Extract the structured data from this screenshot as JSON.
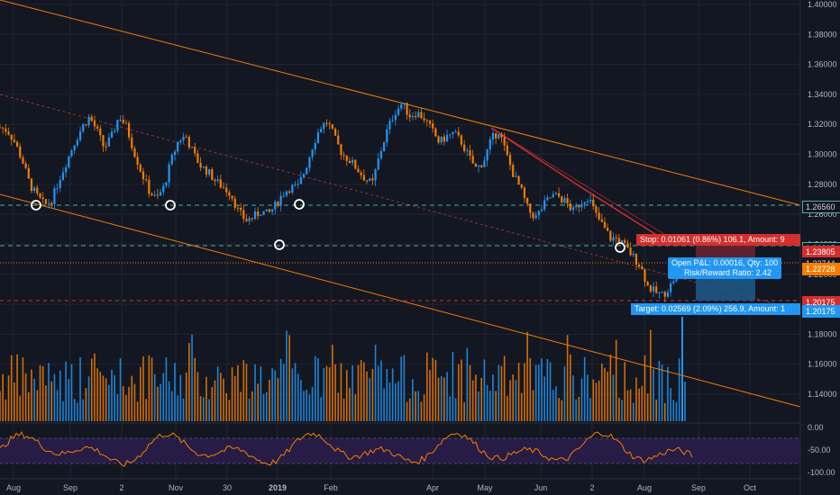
{
  "price_axis": {
    "ticks": [
      "1.40000",
      "1.38000",
      "1.36000",
      "1.34000",
      "1.32000",
      "1.30000",
      "1.28000",
      "1.26000",
      "1.24000",
      "1.22000",
      "1.20000",
      "1.18000",
      "1.16000",
      "1.14000"
    ],
    "tick_values": [
      1.4,
      1.38,
      1.36,
      1.34,
      1.32,
      1.3,
      1.28,
      1.26,
      1.24,
      1.22,
      1.2,
      1.18,
      1.16,
      1.14
    ]
  },
  "price_tags": [
    {
      "label": "1.26560",
      "value": 1.2656,
      "bg": "#131722",
      "fg": "#cfd2d9",
      "border": "#4caf9a"
    },
    {
      "label": "1.23805",
      "value": 1.23805,
      "bg": "#131722",
      "fg": "#cfd2d9",
      "border": "#4caf9a"
    },
    {
      "label": "1.23805",
      "value": 1.2355,
      "bg": "#d32f2f",
      "fg": "#ffffff",
      "border": "#d32f2f"
    },
    {
      "label": "1.22744",
      "value": 1.22744,
      "bg": "#131722",
      "fg": "#cfd2d9",
      "border": "#131722"
    },
    {
      "label": "1.22728",
      "value": 1.224,
      "bg": "#f57c00",
      "fg": "#ffffff",
      "border": "#f57c00"
    },
    {
      "label": "1.20175",
      "value": 1.20175,
      "bg": "#d32f2f",
      "fg": "#ffffff",
      "border": "#d32f2f"
    },
    {
      "label": "1.20175",
      "value": 1.196,
      "bg": "#2196f3",
      "fg": "#ffffff",
      "border": "#2196f3"
    }
  ],
  "time_axis": {
    "labels": [
      "Aug",
      "Sep",
      "2",
      "Nov",
      "30",
      "2019",
      "Feb",
      "Apr",
      "May",
      "Jun",
      "2",
      "Aug",
      "Sep",
      "Oct"
    ],
    "positions": [
      15,
      78,
      135,
      195,
      252,
      308,
      367,
      480,
      538,
      600,
      657,
      715,
      775,
      832
    ],
    "bold": [
      "2019"
    ]
  },
  "position_tool": {
    "stop_label": "Stop: 0.01061 (0.86%) 106.1, Amount: 9",
    "pnl_label": "Open P&L: 0.00016, Qty: 100",
    "rr_label": "Risk/Reward Ratio: 2.42",
    "target_label": "Target: 0.02569 (2.09%) 256.9, Amount: 1"
  },
  "oscillator": {
    "ticks": [
      "0.00",
      "-50.00",
      "-100.00"
    ],
    "tick_values": [
      0,
      -50,
      -100
    ]
  },
  "colors": {
    "background": "#131722",
    "up": "#2196f3",
    "down": "#f57c00",
    "channel": "#f57c00",
    "trend": "#d32f2f",
    "support": "#4caf9a",
    "band": "#2a1d4a"
  },
  "chart_data": {
    "type": "candlestick",
    "instrument_scale": {
      "ymin": 1.125,
      "ymax": 1.405
    },
    "close_series": [
      1.318,
      1.316,
      1.308,
      1.296,
      1.28,
      1.272,
      1.266,
      1.27,
      1.284,
      1.296,
      1.308,
      1.318,
      1.325,
      1.316,
      1.304,
      1.312,
      1.326,
      1.318,
      1.302,
      1.288,
      1.276,
      1.27,
      1.278,
      1.296,
      1.31,
      1.312,
      1.3,
      1.292,
      1.288,
      1.282,
      1.278,
      1.274,
      1.262,
      1.256,
      1.258,
      1.262,
      1.26,
      1.266,
      1.274,
      1.278,
      1.278,
      1.29,
      1.306,
      1.318,
      1.322,
      1.31,
      1.3,
      1.296,
      1.29,
      1.284,
      1.28,
      1.3,
      1.316,
      1.328,
      1.334,
      1.326,
      1.328,
      1.324,
      1.316,
      1.308,
      1.312,
      1.314,
      1.308,
      1.298,
      1.29,
      1.296,
      1.31,
      1.316,
      1.3,
      1.286,
      1.276,
      1.262,
      1.258,
      1.266,
      1.272,
      1.272,
      1.268,
      1.262,
      1.268,
      1.272,
      1.26,
      1.252,
      1.244,
      1.244,
      1.238,
      1.232,
      1.226,
      1.212,
      1.208,
      1.206,
      1.212,
      1.222,
      1.228
    ],
    "volume_note": "histogram in lower pane",
    "marked_lows": [
      "Aug",
      "Nov",
      "Jan",
      "2019",
      "Jun-Jul"
    ]
  }
}
